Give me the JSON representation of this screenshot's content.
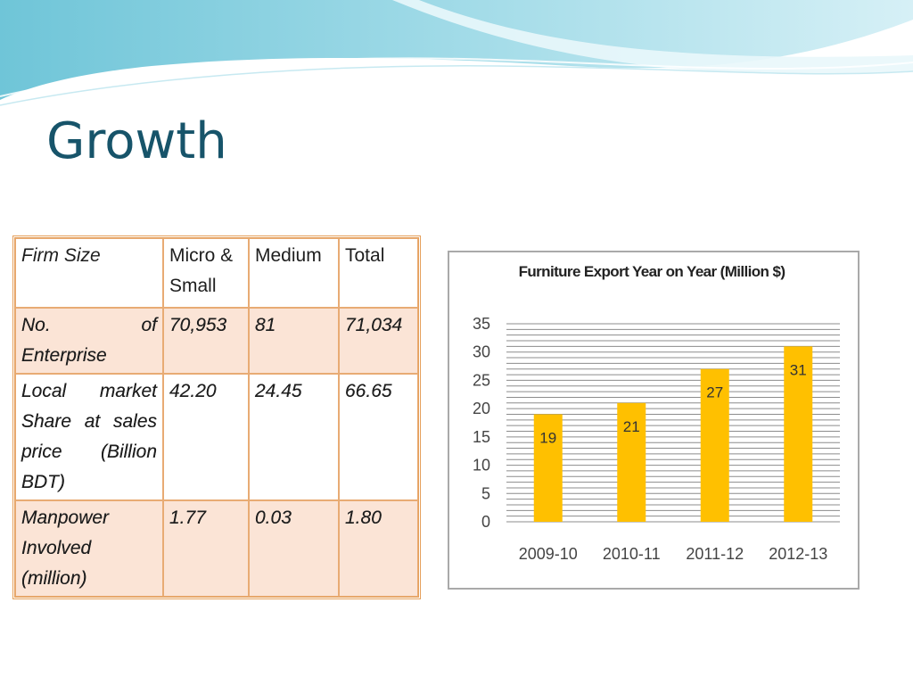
{
  "slide": {
    "title": "Growth"
  },
  "table": {
    "headers": [
      "Firm Size",
      "Micro & Small",
      "Medium",
      "Total"
    ],
    "rows": [
      {
        "label": "No. of Enterprise",
        "micro_small": "70,953",
        "medium": "81",
        "total": "71,034"
      },
      {
        "label": "Local market Share at sales price (Billion BDT)",
        "micro_small": "42.20",
        "medium": "24.45",
        "total": "66.65"
      },
      {
        "label": "Manpower Involved (million)",
        "micro_small": "1.77",
        "medium": "0.03",
        "total": "1.80"
      }
    ],
    "shaded_fill": "#fbe4d6",
    "border_color": "#e5a05c"
  },
  "chart_data": {
    "type": "bar",
    "title": "Furniture Export Year on Year (Million $)",
    "categories": [
      "2009-10",
      "2010-11",
      "2011-12",
      "2012-13"
    ],
    "values": [
      19,
      21,
      27,
      31
    ],
    "data_labels": [
      "19",
      "21",
      "27",
      "31"
    ],
    "ylim": [
      0,
      35
    ],
    "y_ticks": [
      0,
      5,
      10,
      15,
      20,
      25,
      30,
      35
    ],
    "xlabel": "",
    "ylabel": "",
    "grid": true,
    "legend": "none",
    "bar_color": "#ffc000"
  }
}
